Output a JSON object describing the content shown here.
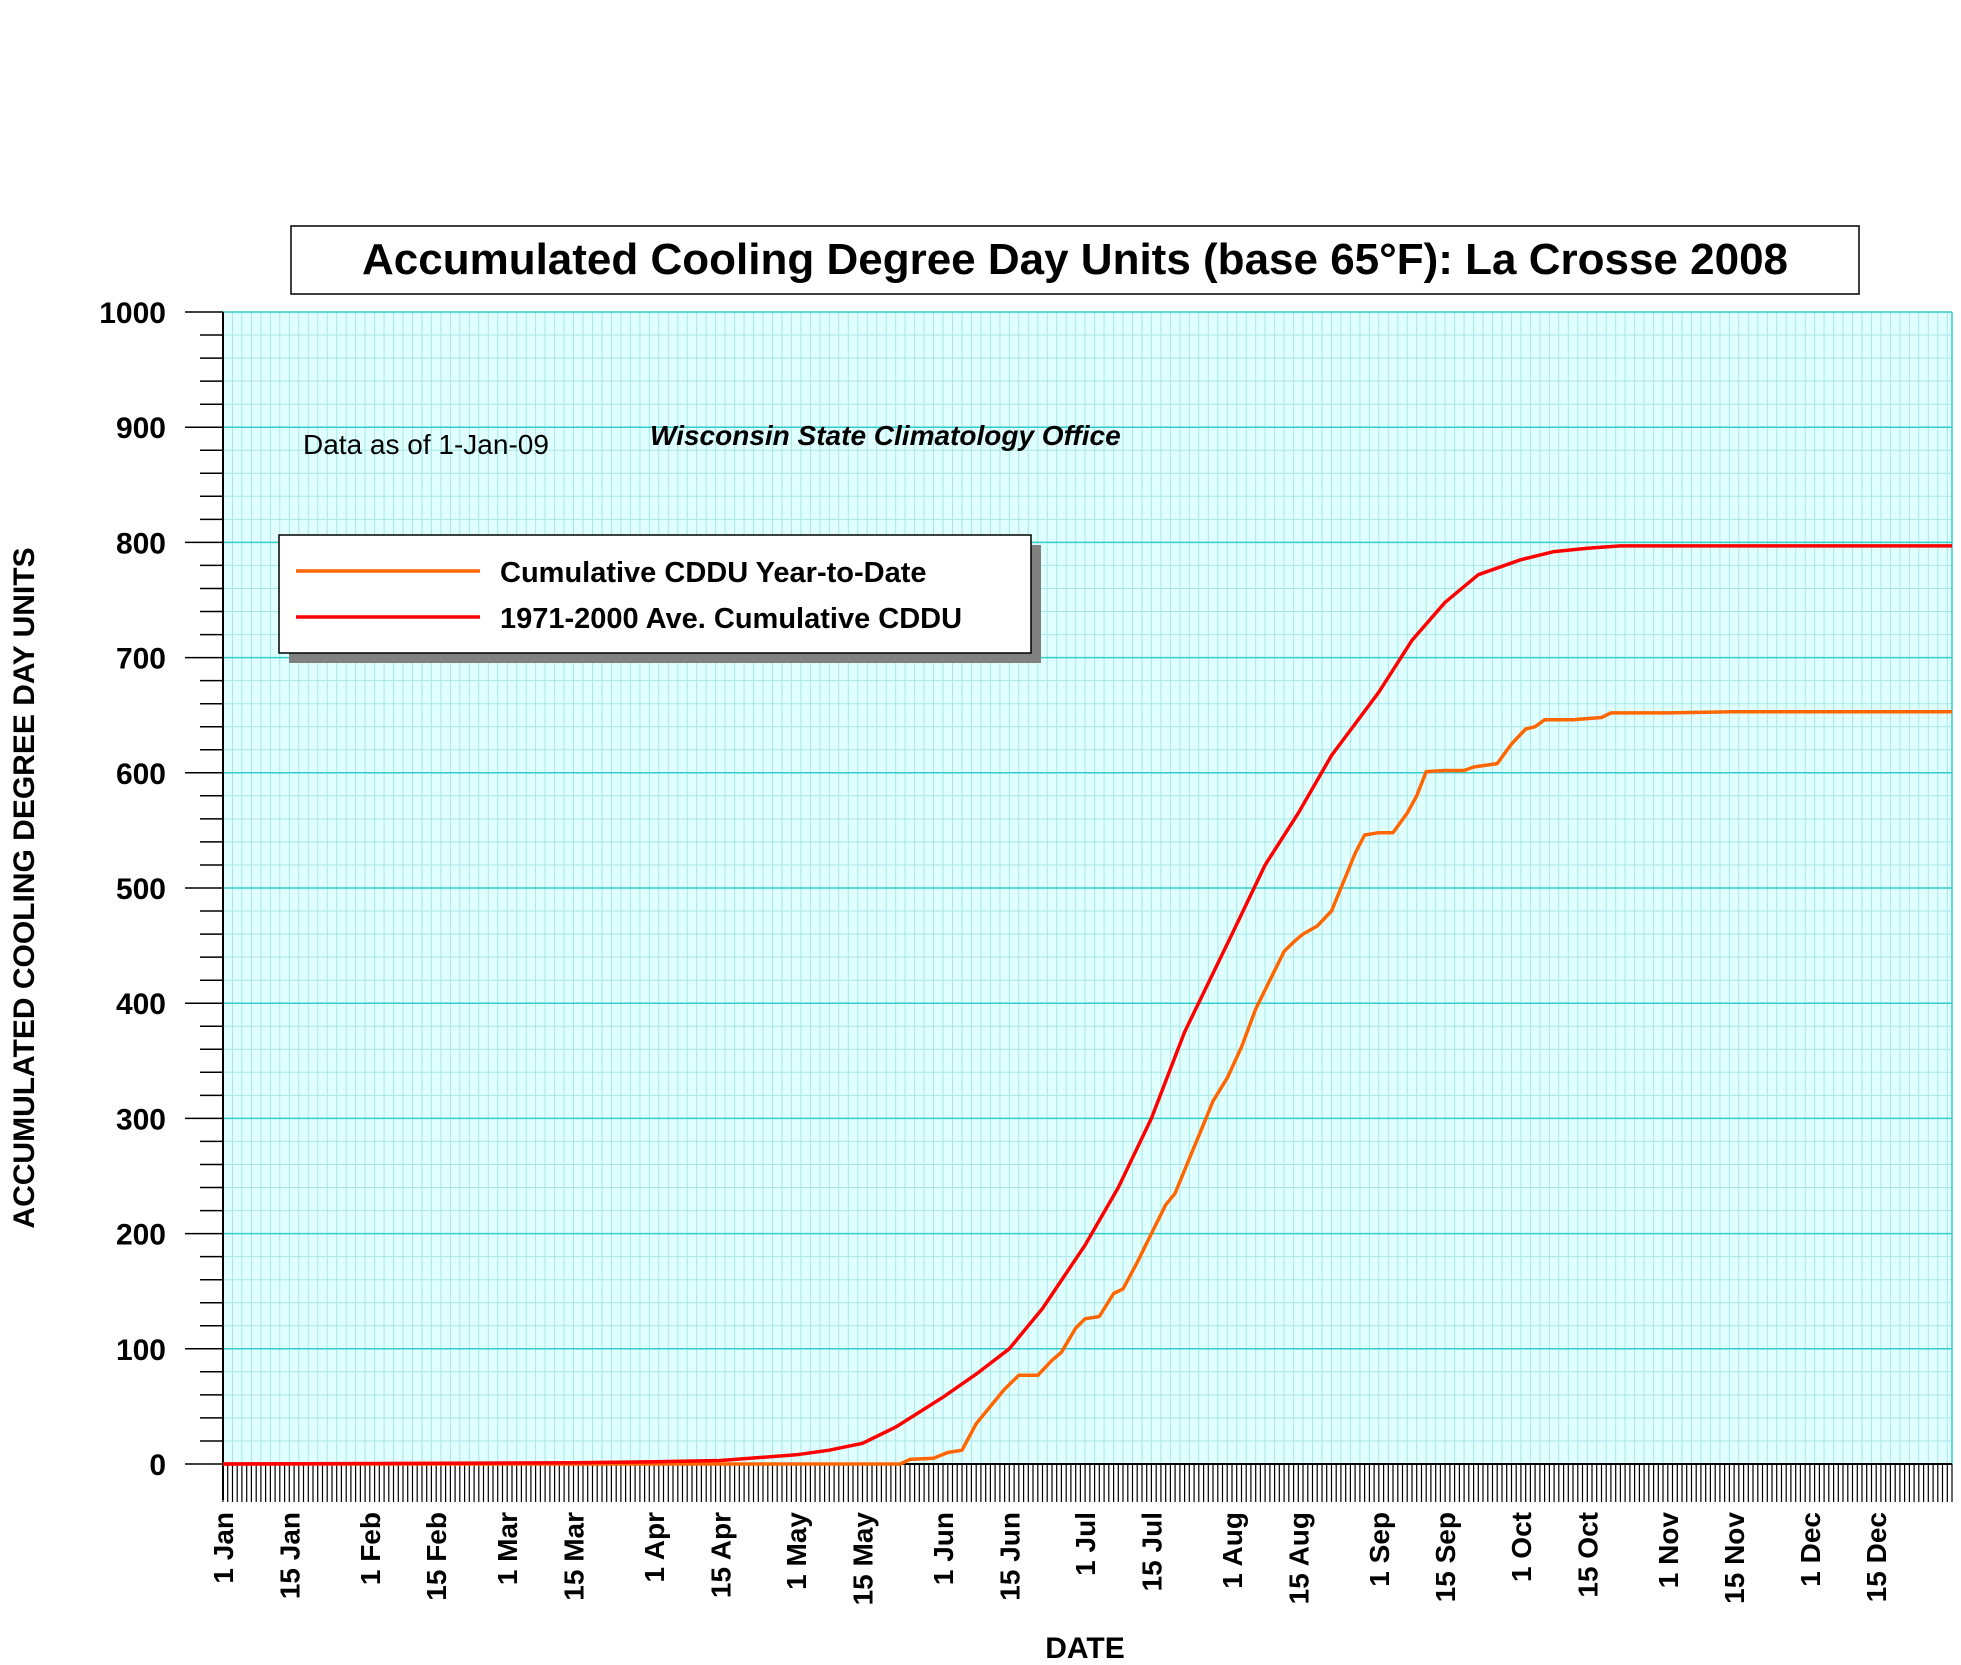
{
  "chart_data": {
    "type": "line",
    "title": "Accumulated Cooling Degree Day Units (base 65°F): La Crosse 2008",
    "xlabel": "DATE",
    "ylabel": "ACCUMULATED COOLING DEGREE DAY UNITS",
    "ylim": [
      0,
      1000
    ],
    "yticks": [
      "0",
      "100",
      "200",
      "300",
      "400",
      "500",
      "600",
      "700",
      "800",
      "900",
      "1000"
    ],
    "xlim": [
      "2008-01-01",
      "2008-12-31"
    ],
    "x_tick_labels": [
      {
        "date": "2008-01-01",
        "label": "1 Jan"
      },
      {
        "date": "2008-01-15",
        "label": "15 Jan"
      },
      {
        "date": "2008-02-01",
        "label": "1 Feb"
      },
      {
        "date": "2008-02-15",
        "label": "15 Feb"
      },
      {
        "date": "2008-03-01",
        "label": "1 Mar"
      },
      {
        "date": "2008-03-15",
        "label": "15 Mar"
      },
      {
        "date": "2008-04-01",
        "label": "1 Apr"
      },
      {
        "date": "2008-04-15",
        "label": "15 Apr"
      },
      {
        "date": "2008-05-01",
        "label": "1 May"
      },
      {
        "date": "2008-05-15",
        "label": "15 May"
      },
      {
        "date": "2008-06-01",
        "label": "1 Jun"
      },
      {
        "date": "2008-06-15",
        "label": "15 Jun"
      },
      {
        "date": "2008-07-01",
        "label": "1 Jul"
      },
      {
        "date": "2008-07-15",
        "label": "15 Jul"
      },
      {
        "date": "2008-08-01",
        "label": "1 Aug"
      },
      {
        "date": "2008-08-15",
        "label": "15 Aug"
      },
      {
        "date": "2008-09-01",
        "label": "1 Sep"
      },
      {
        "date": "2008-09-15",
        "label": "15 Sep"
      },
      {
        "date": "2008-10-01",
        "label": "1 Oct"
      },
      {
        "date": "2008-10-15",
        "label": "15 Oct"
      },
      {
        "date": "2008-11-01",
        "label": "1 Nov"
      },
      {
        "date": "2008-11-15",
        "label": "15 Nov"
      },
      {
        "date": "2008-12-01",
        "label": "1 Dec"
      },
      {
        "date": "2008-12-15",
        "label": "15 Dec"
      }
    ],
    "annotations": {
      "data_note": "Data as of 1-Jan-09",
      "source": "Wisconsin State Climatology Office"
    },
    "legend_position": "top-left",
    "grid": true,
    "series": [
      {
        "name": "Cumulative CDDU Year-to-Date",
        "color": "#ff6600",
        "points": [
          [
            "2008-01-01",
            0
          ],
          [
            "2008-05-23",
            0
          ],
          [
            "2008-05-25",
            4
          ],
          [
            "2008-05-30",
            5
          ],
          [
            "2008-06-02",
            10
          ],
          [
            "2008-06-05",
            12
          ],
          [
            "2008-06-08",
            35
          ],
          [
            "2008-06-11",
            50
          ],
          [
            "2008-06-14",
            65
          ],
          [
            "2008-06-17",
            77
          ],
          [
            "2008-06-21",
            77
          ],
          [
            "2008-06-24",
            90
          ],
          [
            "2008-06-26",
            97
          ],
          [
            "2008-06-29",
            118
          ],
          [
            "2008-07-01",
            126
          ],
          [
            "2008-07-04",
            128
          ],
          [
            "2008-07-07",
            148
          ],
          [
            "2008-07-09",
            152
          ],
          [
            "2008-07-12",
            175
          ],
          [
            "2008-07-15",
            200
          ],
          [
            "2008-07-18",
            225
          ],
          [
            "2008-07-20",
            235
          ],
          [
            "2008-07-23",
            265
          ],
          [
            "2008-07-26",
            295
          ],
          [
            "2008-07-28",
            315
          ],
          [
            "2008-07-31",
            335
          ],
          [
            "2008-08-03",
            362
          ],
          [
            "2008-08-06",
            395
          ],
          [
            "2008-08-09",
            420
          ],
          [
            "2008-08-12",
            445
          ],
          [
            "2008-08-14",
            453
          ],
          [
            "2008-08-16",
            460
          ],
          [
            "2008-08-19",
            467
          ],
          [
            "2008-08-22",
            480
          ],
          [
            "2008-08-25",
            510
          ],
          [
            "2008-08-27",
            530
          ],
          [
            "2008-08-29",
            546
          ],
          [
            "2008-09-01",
            548
          ],
          [
            "2008-09-04",
            548
          ],
          [
            "2008-09-07",
            565
          ],
          [
            "2008-09-09",
            580
          ],
          [
            "2008-09-11",
            601
          ],
          [
            "2008-09-15",
            602
          ],
          [
            "2008-09-19",
            602
          ],
          [
            "2008-09-21",
            605
          ],
          [
            "2008-09-26",
            608
          ],
          [
            "2008-09-29",
            625
          ],
          [
            "2008-10-02",
            638
          ],
          [
            "2008-10-04",
            640
          ],
          [
            "2008-10-06",
            646
          ],
          [
            "2008-10-12",
            646
          ],
          [
            "2008-10-18",
            648
          ],
          [
            "2008-10-20",
            652
          ],
          [
            "2008-11-01",
            652
          ],
          [
            "2008-11-15",
            653
          ],
          [
            "2008-12-31",
            653
          ]
        ]
      },
      {
        "name": "1971-2000 Ave. Cumulative CDDU",
        "color": "#ff0000",
        "points": [
          [
            "2008-01-01",
            0
          ],
          [
            "2008-03-15",
            1
          ],
          [
            "2008-04-01",
            2
          ],
          [
            "2008-04-15",
            3
          ],
          [
            "2008-05-01",
            8
          ],
          [
            "2008-05-08",
            12
          ],
          [
            "2008-05-15",
            18
          ],
          [
            "2008-05-22",
            32
          ],
          [
            "2008-06-01",
            58
          ],
          [
            "2008-06-08",
            78
          ],
          [
            "2008-06-15",
            100
          ],
          [
            "2008-06-22",
            135
          ],
          [
            "2008-07-01",
            190
          ],
          [
            "2008-07-08",
            240
          ],
          [
            "2008-07-15",
            300
          ],
          [
            "2008-07-22",
            375
          ],
          [
            "2008-08-01",
            460
          ],
          [
            "2008-08-08",
            520
          ],
          [
            "2008-08-15",
            565
          ],
          [
            "2008-08-22",
            615
          ],
          [
            "2008-09-01",
            670
          ],
          [
            "2008-09-08",
            715
          ],
          [
            "2008-09-15",
            748
          ],
          [
            "2008-09-22",
            772
          ],
          [
            "2008-10-01",
            785
          ],
          [
            "2008-10-08",
            792
          ],
          [
            "2008-10-15",
            795
          ],
          [
            "2008-10-22",
            797
          ],
          [
            "2008-11-01",
            797
          ],
          [
            "2008-12-31",
            797
          ]
        ]
      }
    ]
  },
  "colors": {
    "plot_background": "#e0ffff",
    "minor_grid": "#a8e6e6",
    "major_grid": "#33cccc",
    "legend_shadow": "#808080"
  }
}
